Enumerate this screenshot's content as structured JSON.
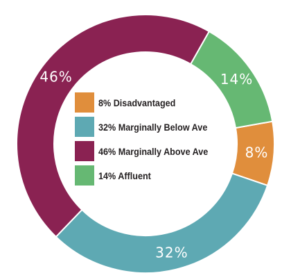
{
  "chart_data": {
    "type": "pie",
    "donut": true,
    "categories": [
      "Disadvantaged",
      "Marginally Below Ave",
      "Marginally Above Ave",
      "Affluent"
    ],
    "values": [
      8,
      32,
      46,
      14
    ],
    "colors": [
      "#e08e3c",
      "#5ea9b3",
      "#8a2252",
      "#66b873"
    ],
    "slice_labels": [
      "8%",
      "32%",
      "46%",
      "14%"
    ],
    "legend": [
      {
        "label": "8% Disadvantaged",
        "color": "#e08e3c"
      },
      {
        "label": "32% Marginally Below Ave",
        "color": "#5ea9b3"
      },
      {
        "label": "46% Marginally Above Ave",
        "color": "#8a2252"
      },
      {
        "label": "14% Affluent",
        "color": "#66b873"
      }
    ],
    "legend_placement": "center"
  }
}
